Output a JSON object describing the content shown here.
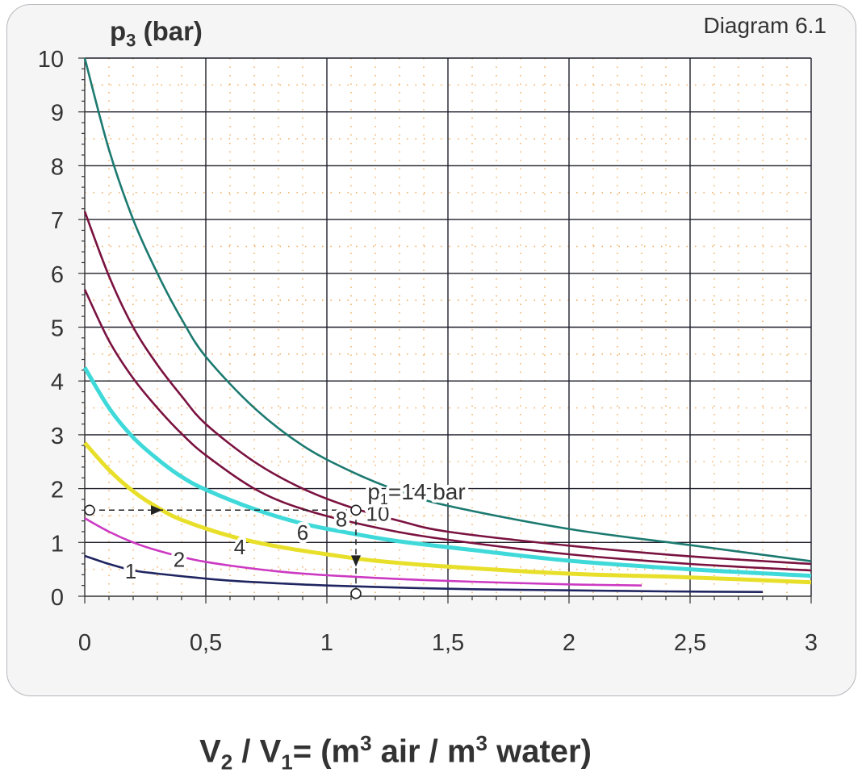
{
  "diagram_label": "Diagram 6.1",
  "y_title": {
    "main": "p",
    "sub": "3",
    "rest": " (bar)"
  },
  "x_title": {
    "a": "V",
    "a_sub": "2",
    "b": " / V",
    "b_sub": "1",
    "c": "= (m",
    "c_sup": "3",
    "d": " air / m",
    "d_sup": "3",
    "e": " water)"
  },
  "chart_data": {
    "type": "line",
    "xlim": [
      0,
      3
    ],
    "ylim": [
      0,
      10
    ],
    "x_ticks": [
      "0",
      "0,5",
      "1",
      "1,5",
      "2",
      "2,5",
      "3"
    ],
    "y_ticks": [
      "0",
      "1",
      "2",
      "3",
      "4",
      "5",
      "6",
      "7",
      "8",
      "9",
      "10"
    ],
    "grid": true,
    "series": [
      {
        "name": "1",
        "color": "#1f2560",
        "points": [
          [
            0,
            0.75
          ],
          [
            0.1,
            0.6
          ],
          [
            0.2,
            0.48
          ],
          [
            0.3,
            0.42
          ],
          [
            0.45,
            0.35
          ],
          [
            0.6,
            0.29
          ],
          [
            0.8,
            0.24
          ],
          [
            1.0,
            0.2
          ],
          [
            1.3,
            0.16
          ],
          [
            1.6,
            0.13
          ],
          [
            2.0,
            0.11
          ],
          [
            2.4,
            0.09
          ],
          [
            2.8,
            0.08
          ]
        ]
      },
      {
        "name": "2",
        "color": "#cc39c2",
        "points": [
          [
            0,
            1.45
          ],
          [
            0.1,
            1.2
          ],
          [
            0.2,
            1.0
          ],
          [
            0.3,
            0.85
          ],
          [
            0.45,
            0.68
          ],
          [
            0.6,
            0.57
          ],
          [
            0.8,
            0.46
          ],
          [
            1.0,
            0.39
          ],
          [
            1.3,
            0.32
          ],
          [
            1.6,
            0.27
          ],
          [
            2.0,
            0.22
          ],
          [
            2.3,
            0.2
          ]
        ]
      },
      {
        "name": "4",
        "color": "#e8df2a",
        "points": [
          [
            0,
            2.85
          ],
          [
            0.1,
            2.35
          ],
          [
            0.2,
            1.95
          ],
          [
            0.3,
            1.65
          ],
          [
            0.4,
            1.42
          ],
          [
            0.6,
            1.12
          ],
          [
            0.8,
            0.92
          ],
          [
            1.0,
            0.78
          ],
          [
            1.2,
            0.66
          ],
          [
            1.5,
            0.55
          ],
          [
            2.0,
            0.42
          ],
          [
            2.5,
            0.35
          ],
          [
            3.0,
            0.26
          ]
        ]
      },
      {
        "name": "6",
        "color": "#3fd9d9",
        "points": [
          [
            0,
            4.25
          ],
          [
            0.1,
            3.5
          ],
          [
            0.2,
            2.95
          ],
          [
            0.3,
            2.55
          ],
          [
            0.4,
            2.22
          ],
          [
            0.5,
            1.98
          ],
          [
            0.7,
            1.62
          ],
          [
            0.9,
            1.35
          ],
          [
            1.1,
            1.17
          ],
          [
            1.3,
            1.02
          ],
          [
            1.6,
            0.86
          ],
          [
            2.0,
            0.66
          ],
          [
            2.5,
            0.5
          ],
          [
            3.0,
            0.38
          ]
        ]
      },
      {
        "name": "8",
        "color": "#7a1240",
        "points": [
          [
            0,
            5.7
          ],
          [
            0.1,
            4.75
          ],
          [
            0.2,
            4.05
          ],
          [
            0.3,
            3.5
          ],
          [
            0.4,
            3.02
          ],
          [
            0.5,
            2.62
          ],
          [
            0.7,
            2.0
          ],
          [
            0.9,
            1.62
          ],
          [
            1.2,
            1.28
          ],
          [
            1.5,
            1.05
          ],
          [
            2.0,
            0.78
          ],
          [
            2.5,
            0.6
          ],
          [
            3.0,
            0.48
          ]
        ]
      },
      {
        "name": "10",
        "color": "#7a1240",
        "points": [
          [
            0,
            7.15
          ],
          [
            0.1,
            5.95
          ],
          [
            0.2,
            5.0
          ],
          [
            0.3,
            4.3
          ],
          [
            0.4,
            3.72
          ],
          [
            0.5,
            3.2
          ],
          [
            0.7,
            2.5
          ],
          [
            0.9,
            2.0
          ],
          [
            1.1,
            1.65
          ],
          [
            1.3,
            1.4
          ],
          [
            1.5,
            1.2
          ],
          [
            2.0,
            0.94
          ],
          [
            2.5,
            0.74
          ],
          [
            3.0,
            0.6
          ]
        ]
      },
      {
        "name": "p1=14 bar",
        "color": "#1c7a70",
        "points": [
          [
            0,
            10.0
          ],
          [
            0.1,
            8.3
          ],
          [
            0.2,
            7.0
          ],
          [
            0.3,
            6.0
          ],
          [
            0.4,
            5.15
          ],
          [
            0.5,
            4.45
          ],
          [
            0.7,
            3.5
          ],
          [
            0.9,
            2.8
          ],
          [
            1.1,
            2.32
          ],
          [
            1.3,
            1.95
          ],
          [
            1.5,
            1.68
          ],
          [
            2.0,
            1.25
          ],
          [
            2.5,
            0.95
          ],
          [
            3.0,
            0.65
          ]
        ]
      }
    ],
    "curve_labels": [
      {
        "text": "1",
        "x": 0.19,
        "y": 0.48
      },
      {
        "text": "2",
        "x": 0.39,
        "y": 0.7
      },
      {
        "text": "4",
        "x": 0.64,
        "y": 0.93
      },
      {
        "text": "6",
        "x": 0.9,
        "y": 1.2
      },
      {
        "text": "8",
        "x": 1.06,
        "y": 1.45
      },
      {
        "text": "10",
        "x": 1.21,
        "y": 1.55
      },
      {
        "text": "p1=14 bar",
        "x": 1.37,
        "y": 1.95
      }
    ],
    "example_path": {
      "start": [
        0.02,
        1.6
      ],
      "arrow_to": [
        0.32,
        1.6
      ],
      "turn": [
        1.12,
        1.6
      ],
      "end": [
        1.12,
        0.05
      ],
      "arrow_down_at": [
        1.12,
        0.55
      ]
    }
  }
}
